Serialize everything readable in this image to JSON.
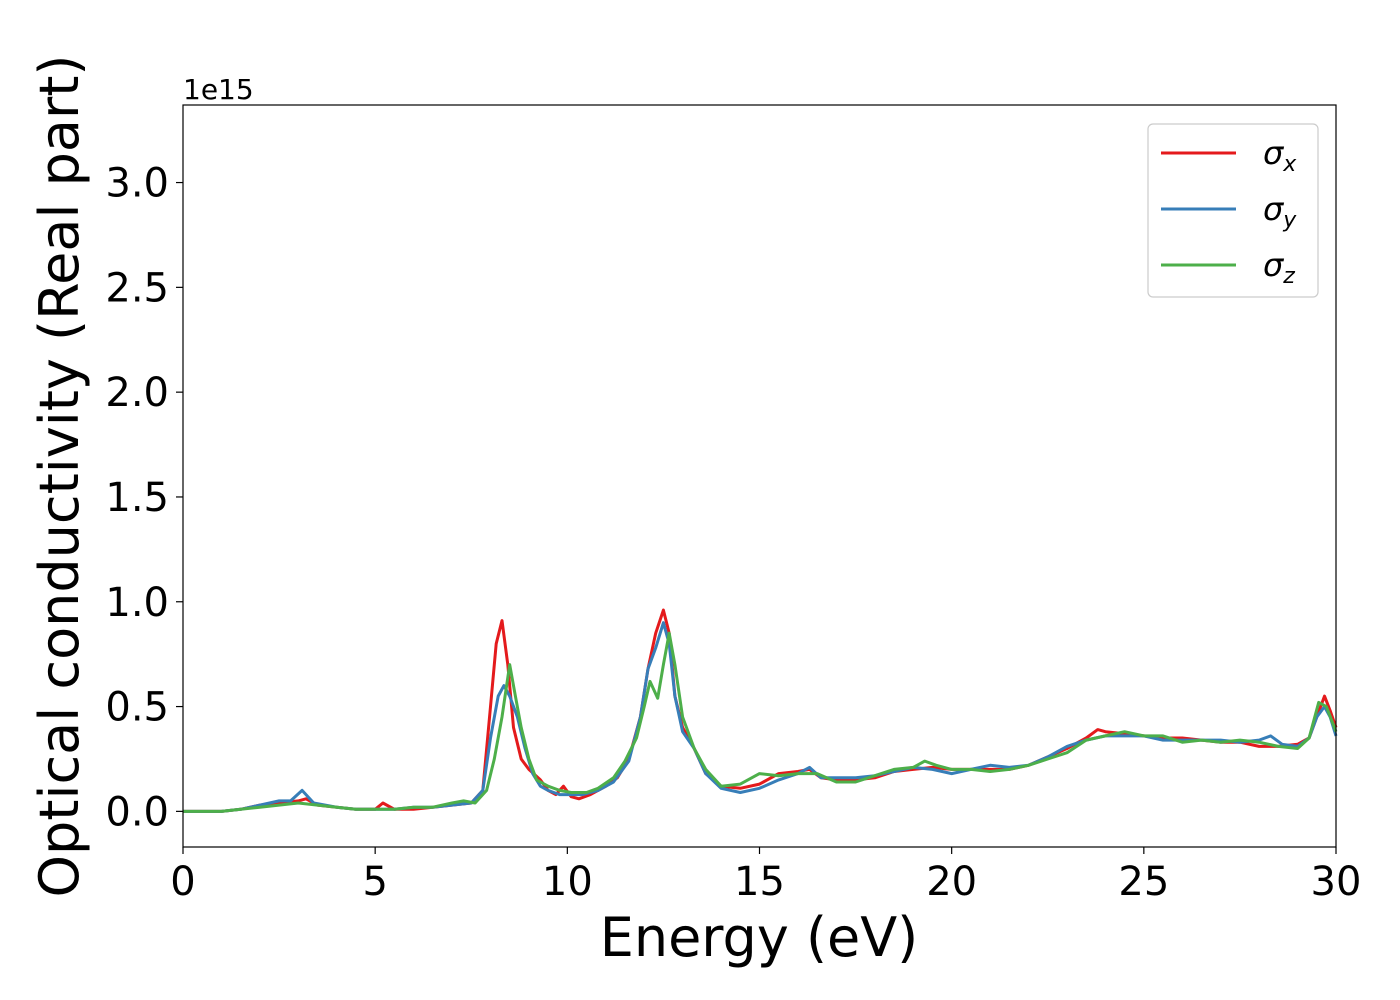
{
  "chart_data": {
    "type": "line",
    "xlabel": "Energy (eV)",
    "ylabel": "Optical conductivity (Real part)",
    "y_offset_label": "1e15",
    "xlim": [
      0,
      30
    ],
    "ylim": [
      -0.17,
      3.37
    ],
    "x_ticks": [
      0,
      5,
      10,
      15,
      20,
      25,
      30
    ],
    "x_tick_labels": [
      "0",
      "5",
      "10",
      "15",
      "20",
      "25",
      "30"
    ],
    "y_ticks": [
      0.0,
      0.5,
      1.0,
      1.5,
      2.0,
      2.5,
      3.0
    ],
    "y_tick_labels": [
      "0.0",
      "0.5",
      "1.0",
      "1.5",
      "2.0",
      "2.5",
      "3.0"
    ],
    "grid": false,
    "legend_position": "top-right",
    "series": [
      {
        "name": "σx",
        "symbol": "σ",
        "subscript": "x",
        "color": "#e41a1c",
        "points": [
          [
            0,
            0
          ],
          [
            1,
            0
          ],
          [
            1.5,
            0.01
          ],
          [
            2,
            0.03
          ],
          [
            2.5,
            0.04
          ],
          [
            3,
            0.05
          ],
          [
            3.2,
            0.06
          ],
          [
            3.5,
            0.03
          ],
          [
            4,
            0.02
          ],
          [
            4.5,
            0.01
          ],
          [
            5,
            0.01
          ],
          [
            5.2,
            0.04
          ],
          [
            5.5,
            0.01
          ],
          [
            6,
            0.01
          ],
          [
            6.5,
            0.02
          ],
          [
            7,
            0.03
          ],
          [
            7.5,
            0.04
          ],
          [
            7.8,
            0.1
          ],
          [
            8,
            0.5
          ],
          [
            8.15,
            0.8
          ],
          [
            8.3,
            0.91
          ],
          [
            8.45,
            0.7
          ],
          [
            8.6,
            0.4
          ],
          [
            8.8,
            0.25
          ],
          [
            9,
            0.2
          ],
          [
            9.3,
            0.15
          ],
          [
            9.5,
            0.1
          ],
          [
            9.7,
            0.08
          ],
          [
            9.9,
            0.12
          ],
          [
            10.1,
            0.07
          ],
          [
            10.3,
            0.06
          ],
          [
            10.6,
            0.08
          ],
          [
            11,
            0.12
          ],
          [
            11.3,
            0.16
          ],
          [
            11.6,
            0.25
          ],
          [
            11.9,
            0.45
          ],
          [
            12.1,
            0.68
          ],
          [
            12.3,
            0.85
          ],
          [
            12.5,
            0.96
          ],
          [
            12.65,
            0.85
          ],
          [
            12.8,
            0.55
          ],
          [
            13,
            0.4
          ],
          [
            13.3,
            0.3
          ],
          [
            13.6,
            0.18
          ],
          [
            14,
            0.12
          ],
          [
            14.5,
            0.11
          ],
          [
            15,
            0.13
          ],
          [
            15.5,
            0.18
          ],
          [
            16,
            0.19
          ],
          [
            16.3,
            0.2
          ],
          [
            16.6,
            0.16
          ],
          [
            17,
            0.15
          ],
          [
            17.5,
            0.15
          ],
          [
            18,
            0.16
          ],
          [
            18.5,
            0.19
          ],
          [
            19,
            0.2
          ],
          [
            19.5,
            0.21
          ],
          [
            20,
            0.2
          ],
          [
            20.5,
            0.2
          ],
          [
            21,
            0.2
          ],
          [
            21.5,
            0.2
          ],
          [
            22,
            0.22
          ],
          [
            22.5,
            0.26
          ],
          [
            23,
            0.3
          ],
          [
            23.5,
            0.35
          ],
          [
            23.8,
            0.39
          ],
          [
            24,
            0.38
          ],
          [
            24.5,
            0.37
          ],
          [
            25,
            0.36
          ],
          [
            25.5,
            0.35
          ],
          [
            26,
            0.35
          ],
          [
            26.5,
            0.34
          ],
          [
            27,
            0.33
          ],
          [
            27.5,
            0.33
          ],
          [
            28,
            0.31
          ],
          [
            28.5,
            0.31
          ],
          [
            29,
            0.32
          ],
          [
            29.3,
            0.35
          ],
          [
            29.5,
            0.45
          ],
          [
            29.7,
            0.55
          ],
          [
            29.85,
            0.48
          ],
          [
            30,
            0.4
          ]
        ]
      },
      {
        "name": "σy",
        "symbol": "σ",
        "subscript": "y",
        "color": "#377eb8",
        "points": [
          [
            0,
            0
          ],
          [
            1,
            0
          ],
          [
            1.5,
            0.01
          ],
          [
            2,
            0.03
          ],
          [
            2.5,
            0.05
          ],
          [
            2.8,
            0.05
          ],
          [
            3.1,
            0.1
          ],
          [
            3.4,
            0.04
          ],
          [
            4,
            0.02
          ],
          [
            4.5,
            0.01
          ],
          [
            5,
            0.01
          ],
          [
            5.5,
            0.01
          ],
          [
            6,
            0.02
          ],
          [
            6.5,
            0.02
          ],
          [
            7,
            0.03
          ],
          [
            7.5,
            0.04
          ],
          [
            7.8,
            0.1
          ],
          [
            8,
            0.35
          ],
          [
            8.2,
            0.55
          ],
          [
            8.35,
            0.6
          ],
          [
            8.5,
            0.55
          ],
          [
            8.7,
            0.45
          ],
          [
            8.9,
            0.3
          ],
          [
            9.1,
            0.18
          ],
          [
            9.3,
            0.12
          ],
          [
            9.5,
            0.1
          ],
          [
            9.8,
            0.08
          ],
          [
            10.1,
            0.08
          ],
          [
            10.4,
            0.08
          ],
          [
            10.8,
            0.1
          ],
          [
            11.2,
            0.14
          ],
          [
            11.6,
            0.24
          ],
          [
            11.9,
            0.45
          ],
          [
            12.1,
            0.68
          ],
          [
            12.3,
            0.78
          ],
          [
            12.5,
            0.9
          ],
          [
            12.65,
            0.8
          ],
          [
            12.8,
            0.55
          ],
          [
            13,
            0.38
          ],
          [
            13.3,
            0.3
          ],
          [
            13.6,
            0.18
          ],
          [
            14,
            0.11
          ],
          [
            14.5,
            0.09
          ],
          [
            15,
            0.11
          ],
          [
            15.5,
            0.15
          ],
          [
            16,
            0.18
          ],
          [
            16.3,
            0.21
          ],
          [
            16.6,
            0.16
          ],
          [
            17,
            0.16
          ],
          [
            17.5,
            0.16
          ],
          [
            18,
            0.17
          ],
          [
            18.5,
            0.19
          ],
          [
            19,
            0.21
          ],
          [
            19.5,
            0.2
          ],
          [
            20,
            0.18
          ],
          [
            20.5,
            0.2
          ],
          [
            21,
            0.22
          ],
          [
            21.5,
            0.21
          ],
          [
            22,
            0.22
          ],
          [
            22.5,
            0.26
          ],
          [
            23,
            0.31
          ],
          [
            23.5,
            0.34
          ],
          [
            24,
            0.36
          ],
          [
            24.5,
            0.36
          ],
          [
            25,
            0.36
          ],
          [
            25.5,
            0.34
          ],
          [
            26,
            0.34
          ],
          [
            26.5,
            0.34
          ],
          [
            27,
            0.34
          ],
          [
            27.5,
            0.33
          ],
          [
            28,
            0.34
          ],
          [
            28.3,
            0.36
          ],
          [
            28.6,
            0.32
          ],
          [
            29,
            0.31
          ],
          [
            29.3,
            0.35
          ],
          [
            29.5,
            0.45
          ],
          [
            29.7,
            0.5
          ],
          [
            29.85,
            0.45
          ],
          [
            30,
            0.36
          ]
        ]
      },
      {
        "name": "σz",
        "symbol": "σ",
        "subscript": "z",
        "color": "#4daf4a",
        "points": [
          [
            0,
            0
          ],
          [
            1,
            0
          ],
          [
            1.5,
            0.01
          ],
          [
            2,
            0.02
          ],
          [
            2.5,
            0.03
          ],
          [
            3,
            0.04
          ],
          [
            3.5,
            0.03
          ],
          [
            4,
            0.02
          ],
          [
            4.5,
            0.01
          ],
          [
            5,
            0.01
          ],
          [
            5.5,
            0.01
          ],
          [
            6,
            0.02
          ],
          [
            6.5,
            0.02
          ],
          [
            7,
            0.04
          ],
          [
            7.3,
            0.05
          ],
          [
            7.6,
            0.04
          ],
          [
            7.9,
            0.1
          ],
          [
            8.1,
            0.25
          ],
          [
            8.3,
            0.45
          ],
          [
            8.5,
            0.7
          ],
          [
            8.65,
            0.55
          ],
          [
            8.8,
            0.4
          ],
          [
            9,
            0.25
          ],
          [
            9.2,
            0.15
          ],
          [
            9.5,
            0.12
          ],
          [
            9.8,
            0.1
          ],
          [
            10.1,
            0.09
          ],
          [
            10.5,
            0.09
          ],
          [
            10.8,
            0.11
          ],
          [
            11.2,
            0.16
          ],
          [
            11.5,
            0.24
          ],
          [
            11.8,
            0.35
          ],
          [
            12,
            0.5
          ],
          [
            12.15,
            0.62
          ],
          [
            12.35,
            0.54
          ],
          [
            12.5,
            0.7
          ],
          [
            12.65,
            0.85
          ],
          [
            12.8,
            0.7
          ],
          [
            13,
            0.45
          ],
          [
            13.3,
            0.3
          ],
          [
            13.6,
            0.2
          ],
          [
            14,
            0.12
          ],
          [
            14.5,
            0.13
          ],
          [
            15,
            0.18
          ],
          [
            15.5,
            0.17
          ],
          [
            16,
            0.18
          ],
          [
            16.5,
            0.18
          ],
          [
            17,
            0.14
          ],
          [
            17.5,
            0.14
          ],
          [
            18,
            0.17
          ],
          [
            18.5,
            0.2
          ],
          [
            19,
            0.21
          ],
          [
            19.3,
            0.24
          ],
          [
            19.6,
            0.22
          ],
          [
            20,
            0.2
          ],
          [
            20.5,
            0.2
          ],
          [
            21,
            0.19
          ],
          [
            21.5,
            0.2
          ],
          [
            22,
            0.22
          ],
          [
            22.5,
            0.25
          ],
          [
            23,
            0.28
          ],
          [
            23.5,
            0.34
          ],
          [
            24,
            0.36
          ],
          [
            24.5,
            0.38
          ],
          [
            25,
            0.36
          ],
          [
            25.5,
            0.36
          ],
          [
            26,
            0.33
          ],
          [
            26.5,
            0.34
          ],
          [
            27,
            0.33
          ],
          [
            27.5,
            0.34
          ],
          [
            28,
            0.33
          ],
          [
            28.5,
            0.31
          ],
          [
            29,
            0.3
          ],
          [
            29.3,
            0.35
          ],
          [
            29.55,
            0.52
          ],
          [
            29.75,
            0.5
          ],
          [
            30,
            0.38
          ]
        ]
      }
    ]
  }
}
